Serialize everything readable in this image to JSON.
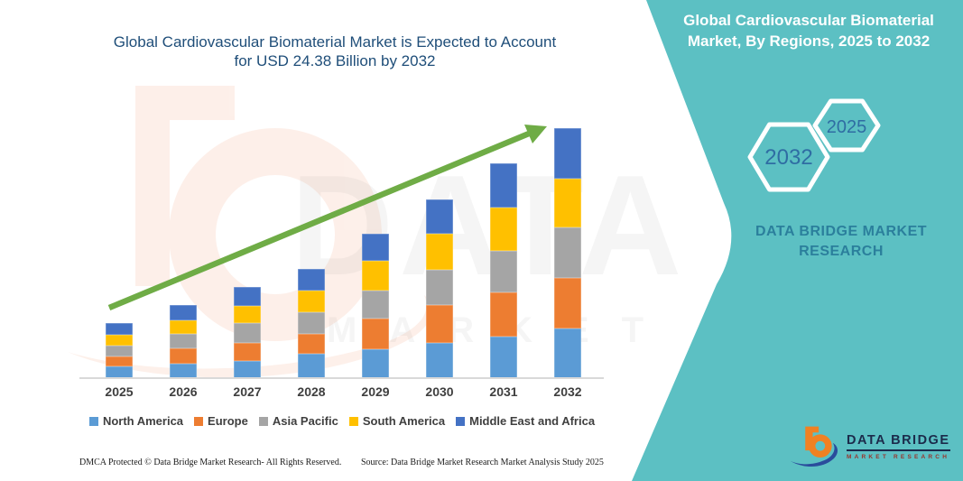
{
  "title": {
    "lines": [
      "Global Cardiovascular Biomaterial Market is Expected to Account",
      "for USD 24.38 Billion by 2032"
    ],
    "color": "#1F4E79"
  },
  "side_panel": {
    "bg_color": "#5CC0C3",
    "heading_lines": [
      "Global Cardiovascular Biomaterial",
      "Market, By Regions, 2025 to 2032"
    ],
    "hexagons": [
      {
        "label": "2032"
      },
      {
        "label": "2025"
      }
    ],
    "hex_text_color": "#2F6DA3",
    "brand_caption_lines": [
      "DATA BRIDGE MARKET",
      "RESEARCH"
    ],
    "brand_caption_color": "#2B7F9C",
    "logo": {
      "line1": "DATA BRIDGE",
      "line2": "MARKET RESEARCH",
      "line1_color": "#1B2B4B",
      "line2_color": "#99342D"
    }
  },
  "watermark": {
    "big_text": "DATA BRIDGE",
    "sub_text": "MARKET RESEARCH"
  },
  "chart_data": {
    "type": "bar",
    "stacked": true,
    "title": "Global Cardiovascular Biomaterial Market is Expected to Account for USD 24.38 Billion by 2032",
    "unit": "USD Billion",
    "categories": [
      "2025",
      "2026",
      "2027",
      "2028",
      "2029",
      "2030",
      "2031",
      "2032"
    ],
    "series": [
      {
        "name": "North America",
        "color": "#5B9BD5",
        "values": [
          1.14,
          1.45,
          1.67,
          2.38,
          2.79,
          3.43,
          4.05,
          4.84
        ]
      },
      {
        "name": "Europe",
        "color": "#ED7D31",
        "values": [
          0.97,
          1.5,
          1.76,
          1.94,
          2.99,
          3.7,
          4.31,
          4.92
        ]
      },
      {
        "name": "Asia Pacific",
        "color": "#A5A5A5",
        "values": [
          1.06,
          1.35,
          1.94,
          2.11,
          2.78,
          3.43,
          4.05,
          4.95
        ]
      },
      {
        "name": "South America",
        "color": "#FFC000",
        "values": [
          1.06,
          1.3,
          1.67,
          2.14,
          2.85,
          3.52,
          4.22,
          4.78
        ]
      },
      {
        "name": "Middle East and Africa",
        "color": "#4472C4",
        "values": [
          1.14,
          1.52,
          1.85,
          2.06,
          2.64,
          3.34,
          4.34,
          4.89
        ]
      }
    ],
    "totals": [
      5.37,
      7.12,
      8.89,
      10.63,
      14.05,
      17.42,
      20.97,
      24.38
    ],
    "ylim": [
      0,
      26
    ],
    "gridlines": false,
    "y_axis_labels": false,
    "legend_position": "bottom",
    "trend_arrow": true,
    "trend_arrow_color": "#6FAC46"
  },
  "footer": {
    "dmca": "DMCA Protected © Data Bridge Market Research-  All Rights Reserved.",
    "source": "Source: Data Bridge Market Research  Market Analysis Study 2025"
  }
}
